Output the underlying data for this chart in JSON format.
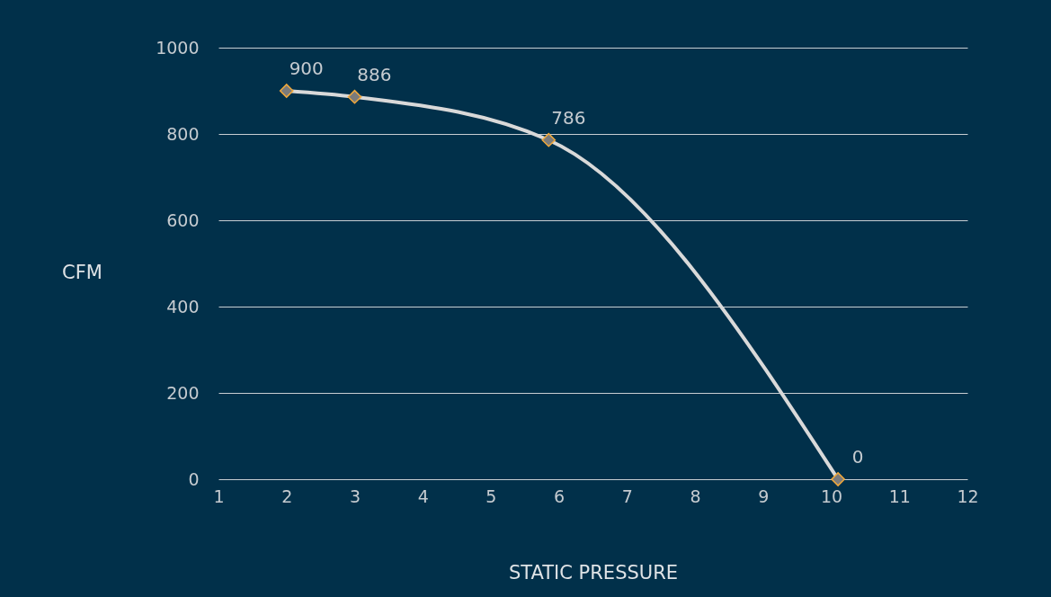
{
  "chart_data": {
    "type": "line",
    "xlabel": "STATIC PRESSURE",
    "ylabel": "CFM",
    "x": [
      2,
      3,
      5.85,
      10.1
    ],
    "series": [
      {
        "color": "#d9d9d9",
        "values": [
          900,
          886,
          786,
          0
        ]
      }
    ],
    "xlim": [
      1,
      12
    ],
    "xticks": [
      1,
      2,
      3,
      4,
      5,
      6,
      7,
      8,
      9,
      10,
      11,
      12
    ],
    "ylim": [
      0,
      1000
    ],
    "yticks": [
      0,
      200,
      400,
      600,
      800,
      1000
    ],
    "grid": "y",
    "marker": "diamond",
    "line_style": "solid",
    "data_labels": true
  }
}
